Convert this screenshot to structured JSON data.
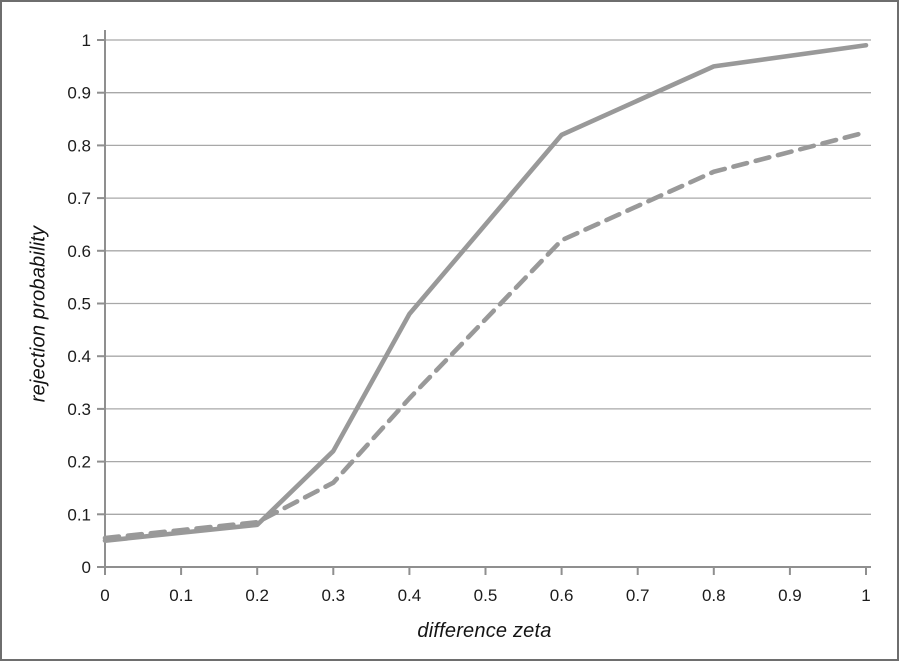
{
  "page": {
    "background": "#ffffff",
    "border_color": "#6e6e6e"
  },
  "chart_data": {
    "type": "line",
    "title": "",
    "xlabel": "difference zeta",
    "ylabel": "rejection probability",
    "xlim": [
      0,
      1
    ],
    "ylim": [
      0,
      1
    ],
    "grid": "horizontal",
    "legend": "none",
    "x_ticks": [
      0,
      0.1,
      0.2,
      0.3,
      0.4,
      0.5,
      0.6,
      0.7,
      0.8,
      0.9,
      1
    ],
    "x_tick_labels": [
      "0",
      "0.1",
      "0.2",
      "0.3",
      "0.4",
      "0.5",
      "0.6",
      "0.7",
      "0.8",
      "0.9",
      "1"
    ],
    "y_ticks": [
      0,
      0.1,
      0.2,
      0.3,
      0.4,
      0.5,
      0.6,
      0.7,
      0.8,
      0.9,
      1
    ],
    "y_tick_labels": [
      "0",
      "0.1",
      "0.2",
      "0.3",
      "0.4",
      "0.5",
      "0.6",
      "0.7",
      "0.8",
      "0.9",
      "1"
    ],
    "x": [
      0,
      0.1,
      0.2,
      0.3,
      0.4,
      0.6,
      0.8,
      1
    ],
    "series": [
      {
        "name": "upper-solid-line",
        "line_style": "solid",
        "color": "#999999",
        "values": [
          0.05,
          0.065,
          0.08,
          0.22,
          0.48,
          0.82,
          0.95,
          0.99
        ]
      },
      {
        "name": "lower-dashed-line",
        "line_style": "dashed",
        "color": "#999999",
        "values": [
          0.055,
          0.07,
          0.085,
          0.16,
          0.32,
          0.62,
          0.75,
          0.825
        ]
      }
    ],
    "colors": {
      "gridline": "#a8a8a8",
      "axis": "#8f8f8f",
      "tick_text": "#1c1c1c"
    }
  }
}
